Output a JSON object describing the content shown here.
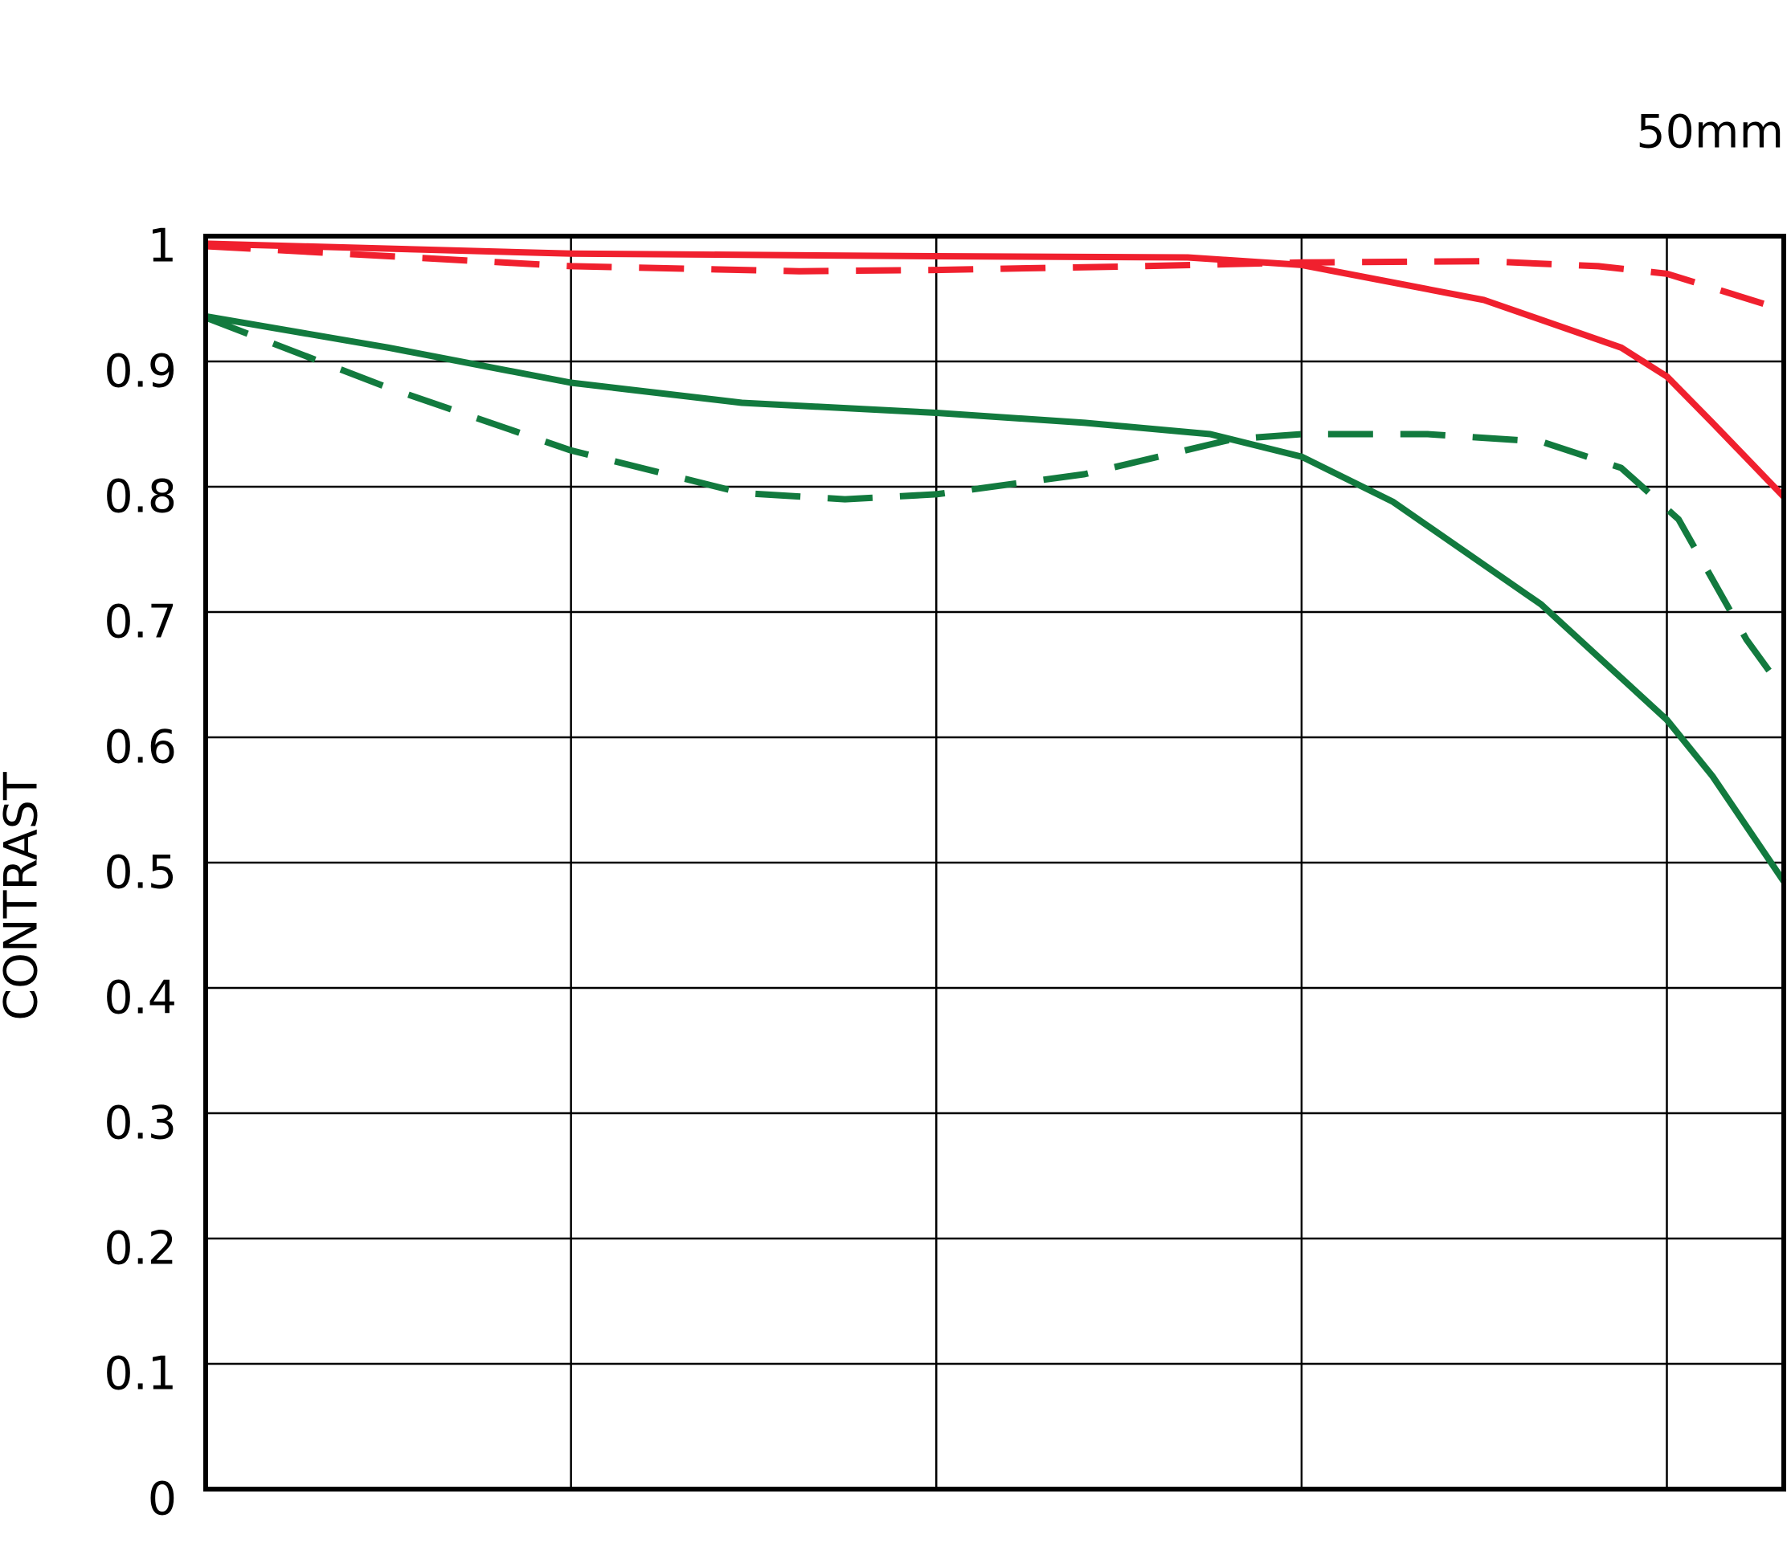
{
  "chart_data": {
    "type": "line",
    "title": "50mm",
    "y_label": "CONTRAST",
    "xlim": [
      0,
      21.6
    ],
    "xticks": [
      0,
      5,
      10,
      15,
      20
    ],
    "ylim": [
      0,
      1
    ],
    "yticks": [
      0,
      0.1,
      0.2,
      0.3,
      0.4,
      0.5,
      0.6,
      0.7,
      0.8,
      0.9,
      1
    ],
    "grid": true,
    "series": [
      {
        "color": "#f0202e",
        "dashed": false,
        "x": [
          0,
          5,
          10,
          13.44,
          15,
          17.5,
          19.375,
          20,
          20.625,
          21.6
        ],
        "values": [
          0.994,
          0.986,
          0.984,
          0.983,
          0.977,
          0.949,
          0.911,
          0.888,
          0.851,
          0.792
        ]
      },
      {
        "color": "#f0202e",
        "dashed": true,
        "x": [
          0,
          5,
          8.125,
          10,
          12.81,
          15,
          17.5,
          19.06,
          20,
          21.6
        ],
        "values": [
          0.992,
          0.976,
          0.972,
          0.973,
          0.976,
          0.979,
          0.98,
          0.976,
          0.97,
          0.941
        ]
      },
      {
        "color": "#127a3e",
        "dashed": false,
        "x": [
          0,
          2.5,
          5,
          7.34,
          10,
          12.03,
          13.75,
          15,
          16.25,
          18.28,
          20,
          20.625,
          21.6
        ],
        "values": [
          0.936,
          0.911,
          0.883,
          0.867,
          0.859,
          0.851,
          0.842,
          0.824,
          0.788,
          0.706,
          0.614,
          0.569,
          0.485
        ]
      },
      {
        "color": "#127a3e",
        "dashed": true,
        "x": [
          0,
          2.5,
          5,
          7.34,
          8.75,
          10,
          12.03,
          14.06,
          15,
          16.72,
          18.28,
          19.375,
          20.16,
          21.09,
          21.6
        ],
        "values": [
          0.935,
          0.879,
          0.829,
          0.795,
          0.79,
          0.794,
          0.81,
          0.838,
          0.842,
          0.842,
          0.836,
          0.815,
          0.774,
          0.678,
          0.637
        ]
      }
    ]
  }
}
